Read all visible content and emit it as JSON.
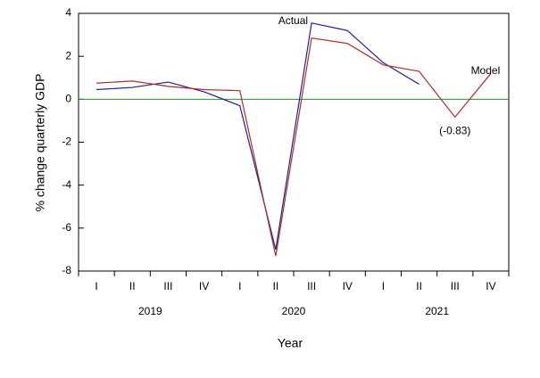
{
  "chart_data": {
    "type": "line",
    "x_title": "Year",
    "y_title": "% change quarterly GDP",
    "categories": [
      "I",
      "II",
      "III",
      "IV",
      "I",
      "II",
      "III",
      "IV",
      "I",
      "II",
      "III",
      "IV"
    ],
    "year_labels": [
      "2019",
      "2020",
      "2021"
    ],
    "series": [
      {
        "name": "Actual",
        "color": "#1f1f8f",
        "values": [
          0.45,
          0.55,
          0.8,
          0.35,
          -0.3,
          -7.0,
          3.55,
          3.2,
          1.7,
          0.7,
          null,
          null
        ]
      },
      {
        "name": "Model",
        "color": "#a3322c",
        "values": [
          0.75,
          0.85,
          0.6,
          0.45,
          0.4,
          -7.3,
          2.85,
          2.6,
          1.6,
          1.3,
          -0.83,
          1.2
        ],
        "value_labels": [
          null,
          null,
          null,
          null,
          null,
          null,
          null,
          null,
          null,
          null,
          "(-0.83)",
          null
        ]
      }
    ],
    "zero_line_color": "#2e8b2e",
    "ylim": [
      -8,
      4
    ],
    "yticks": [
      4,
      2,
      0,
      -2,
      -4,
      -6,
      -8
    ]
  }
}
